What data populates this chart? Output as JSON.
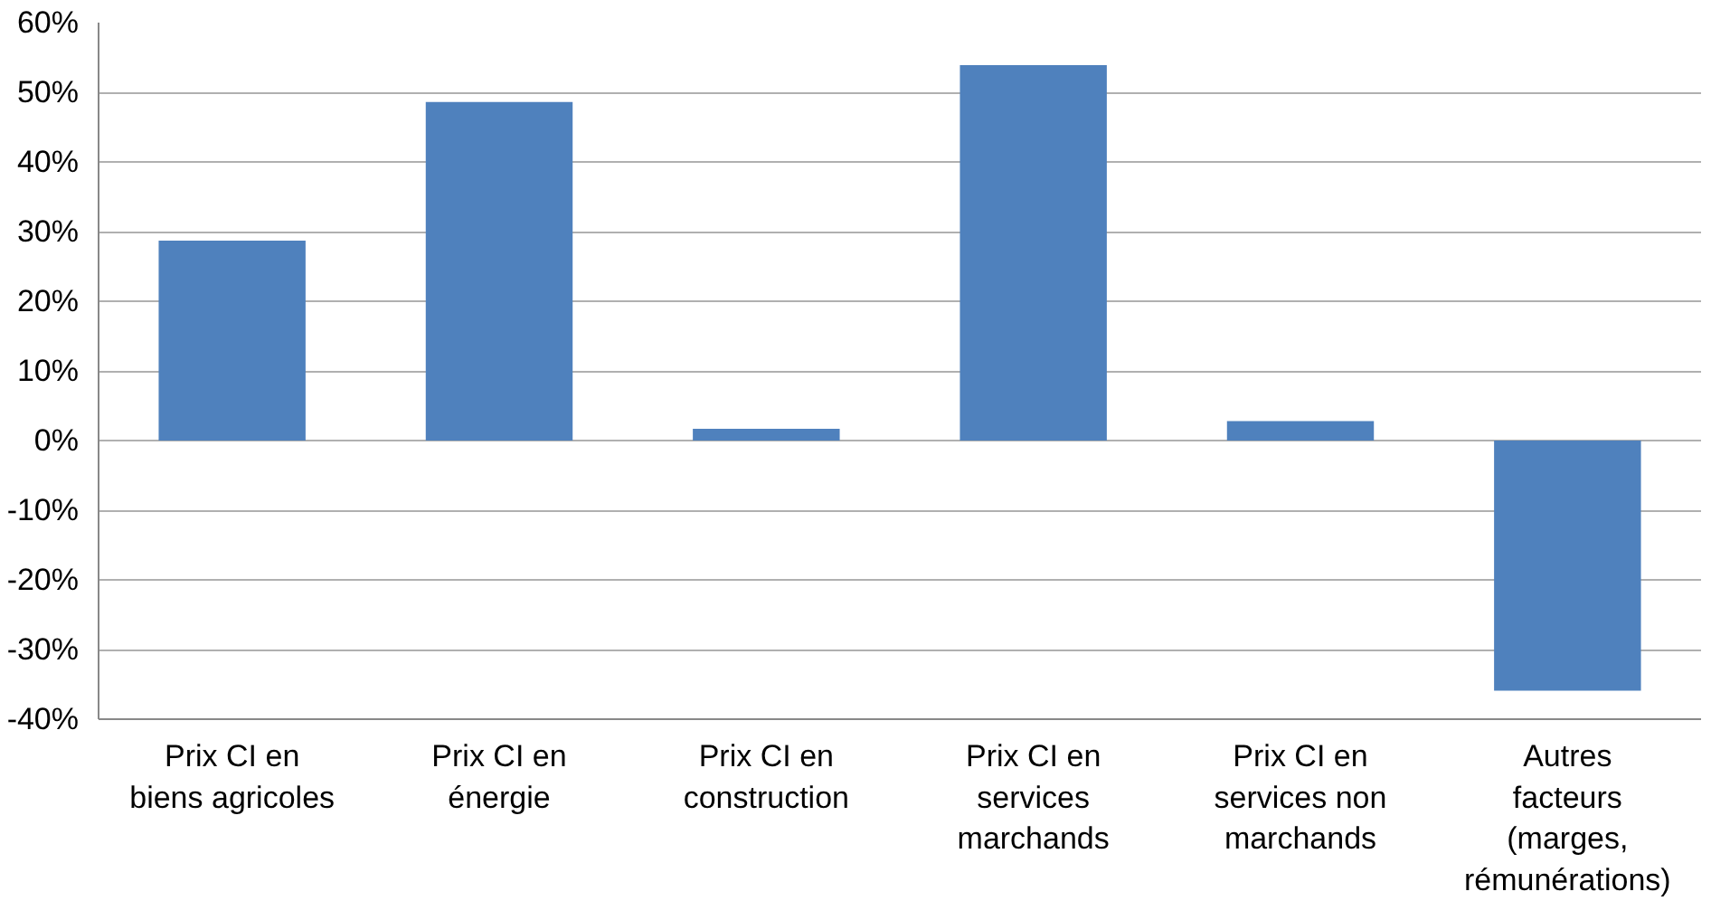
{
  "chart_data": {
    "type": "bar",
    "categories": [
      "Prix CI en\nbiens agricoles",
      "Prix CI en\nénergie",
      "Prix CI en\nconstruction",
      "Prix CI en\nservices\nmarchands",
      "Prix CI en\nservices non\nmarchands",
      "Autres\nfacteurs\n(marges,\nrémunérations)"
    ],
    "values": [
      28.7,
      48.6,
      1.7,
      53.9,
      2.8,
      -35.9
    ],
    "color": "#4f81bd",
    "ylim": [
      -40,
      60
    ],
    "yticks": [
      {
        "value": -40,
        "label": "-40%"
      },
      {
        "value": -30,
        "label": "-30%"
      },
      {
        "value": -20,
        "label": "-20%"
      },
      {
        "value": -10,
        "label": "-10%"
      },
      {
        "value": 0,
        "label": "0%"
      },
      {
        "value": 10,
        "label": "10%"
      },
      {
        "value": 20,
        "label": "20%"
      },
      {
        "value": 30,
        "label": "30%"
      },
      {
        "value": 40,
        "label": "40%"
      },
      {
        "value": 50,
        "label": "50%"
      },
      {
        "value": 60,
        "label": "60%"
      }
    ],
    "grid": "y"
  }
}
